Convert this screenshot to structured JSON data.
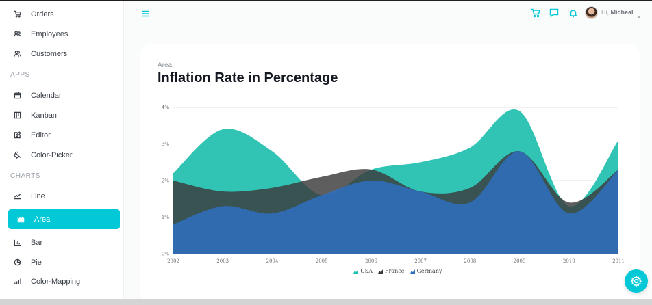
{
  "sidebar": {
    "top_items": [
      {
        "label": "Orders",
        "icon": "cart-icon"
      },
      {
        "label": "Employees",
        "icon": "employees-icon"
      },
      {
        "label": "Customers",
        "icon": "customers-icon"
      }
    ],
    "sections": [
      {
        "title": "APPS",
        "items": [
          {
            "label": "Calendar",
            "icon": "calendar-icon"
          },
          {
            "label": "Kanban",
            "icon": "kanban-icon"
          },
          {
            "label": "Editor",
            "icon": "editor-icon"
          },
          {
            "label": "Color-Picker",
            "icon": "color-picker-icon"
          }
        ]
      },
      {
        "title": "CHARTS",
        "items": [
          {
            "label": "Line",
            "icon": "line-chart-icon"
          },
          {
            "label": "Area",
            "icon": "area-chart-icon",
            "active": true
          },
          {
            "label": "Bar",
            "icon": "bar-chart-icon"
          },
          {
            "label": "Pie",
            "icon": "pie-chart-icon"
          },
          {
            "label": "Color-Mapping",
            "icon": "color-mapping-icon"
          }
        ]
      }
    ]
  },
  "header": {
    "greeting": "Hi,",
    "user_name": "Micheal"
  },
  "card": {
    "subtitle": "Area",
    "title": "Inflation Rate in Percentage"
  },
  "colors": {
    "accent": "#03c9d7",
    "usa": "#1fbfae",
    "france": "#3a3a3a",
    "germany": "#2f6fc0"
  },
  "chart_data": {
    "type": "area",
    "title": "Inflation Rate in Percentage",
    "x": [
      "2002",
      "2003",
      "2004",
      "2005",
      "2006",
      "2007",
      "2008",
      "2009",
      "2010",
      "2011"
    ],
    "y_ticks": [
      "0%",
      "1%",
      "2%",
      "3%",
      "4%"
    ],
    "ylim": [
      0,
      4
    ],
    "series": [
      {
        "name": "USA",
        "values": [
          2.2,
          3.4,
          2.8,
          1.6,
          2.3,
          2.5,
          2.9,
          3.9,
          1.3,
          3.1
        ]
      },
      {
        "name": "France",
        "values": [
          2.0,
          1.7,
          1.8,
          2.1,
          2.3,
          1.7,
          1.8,
          2.8,
          1.4,
          2.3
        ]
      },
      {
        "name": "Germany",
        "values": [
          0.8,
          1.3,
          1.1,
          1.6,
          2.0,
          1.7,
          1.4,
          2.8,
          1.1,
          2.3
        ]
      }
    ],
    "legend": [
      "USA",
      "France",
      "Germany"
    ]
  }
}
